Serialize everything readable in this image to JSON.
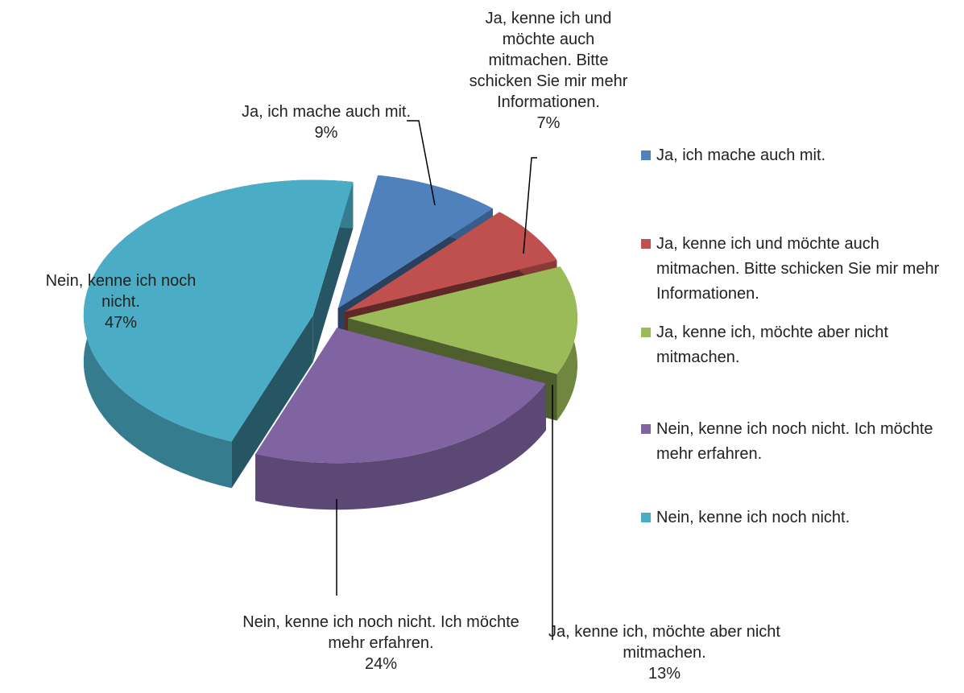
{
  "chart_data": {
    "type": "pie",
    "categories": [
      "Ja, ich mache auch mit.",
      "Ja, kenne ich und möchte auch mitmachen. Bitte schicken Sie mir mehr Informationen.",
      "Ja, kenne ich, möchte aber nicht mitmachen.",
      "Nein, kenne ich noch nicht. Ich möchte mehr erfahren.",
      "Nein, kenne ich noch nicht."
    ],
    "values": [
      9,
      7,
      13,
      24,
      47
    ],
    "value_labels": [
      "9%",
      "7%",
      "13%",
      "24%",
      "47%"
    ],
    "colors": [
      "#4f81bd",
      "#c0504d",
      "#9bbb59",
      "#8064a2",
      "#4bacc6"
    ],
    "legend": "right"
  }
}
